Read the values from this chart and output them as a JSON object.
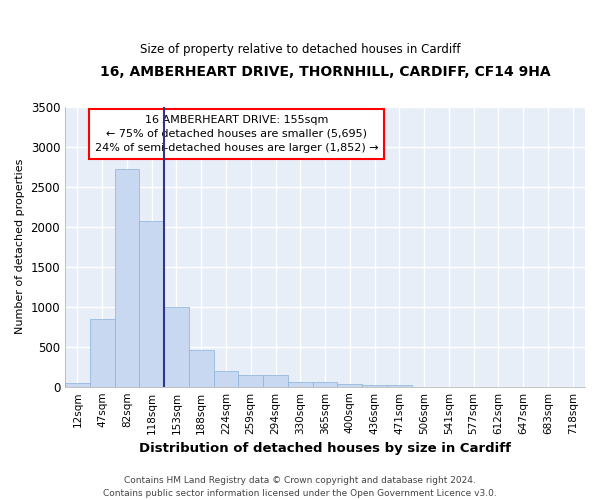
{
  "title": "16, AMBERHEART DRIVE, THORNHILL, CARDIFF, CF14 9HA",
  "subtitle": "Size of property relative to detached houses in Cardiff",
  "xlabel": "Distribution of detached houses by size in Cardiff",
  "ylabel": "Number of detached properties",
  "categories": [
    "12sqm",
    "47sqm",
    "82sqm",
    "118sqm",
    "153sqm",
    "188sqm",
    "224sqm",
    "259sqm",
    "294sqm",
    "330sqm",
    "365sqm",
    "400sqm",
    "436sqm",
    "471sqm",
    "506sqm",
    "541sqm",
    "577sqm",
    "612sqm",
    "647sqm",
    "683sqm",
    "718sqm"
  ],
  "values": [
    50,
    850,
    2720,
    2070,
    1000,
    460,
    200,
    145,
    145,
    55,
    55,
    30,
    20,
    15,
    0,
    0,
    0,
    0,
    0,
    0,
    0
  ],
  "bar_color": "#c8d8f0",
  "bar_edge_color": "#8ab0d8",
  "highlight_line_color": "#333388",
  "highlight_bar_index": 3,
  "annotation_line1": "16 AMBERHEART DRIVE: 155sqm",
  "annotation_line2": "← 75% of detached houses are smaller (5,695)",
  "annotation_line3": "24% of semi-detached houses are larger (1,852) →",
  "ylim": [
    0,
    3500
  ],
  "yticks": [
    0,
    500,
    1000,
    1500,
    2000,
    2500,
    3000,
    3500
  ],
  "fig_bg": "#ffffff",
  "plot_bg": "#e8eef8",
  "grid_color": "#ffffff",
  "footer_line1": "Contains HM Land Registry data © Crown copyright and database right 2024.",
  "footer_line2": "Contains public sector information licensed under the Open Government Licence v3.0."
}
